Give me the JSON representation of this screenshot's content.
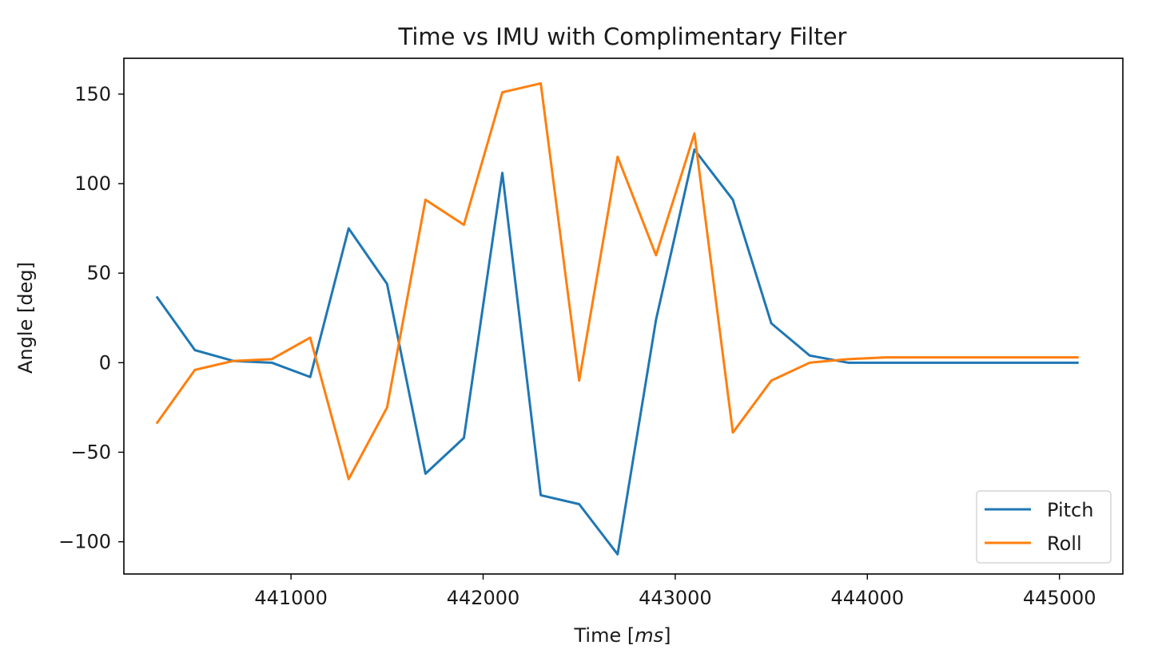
{
  "chart_data": {
    "type": "line",
    "title": "Time vs IMU with Complimentary Filter",
    "xlabel_prefix": "Time [",
    "xlabel_unit": "ms",
    "xlabel_suffix": "]",
    "ylabel": "Angle [deg]",
    "xlim": [
      440130,
      445330
    ],
    "ylim": [
      -118,
      170
    ],
    "xticks": [
      441000,
      442000,
      443000,
      444000,
      445000
    ],
    "yticks": [
      -100,
      -50,
      0,
      50,
      100,
      150
    ],
    "ytick_labels": [
      "−100",
      "−50",
      "0",
      "50",
      "100",
      "150"
    ],
    "grid": false,
    "legend_position": "lower-right",
    "x": [
      440300,
      440500,
      440700,
      440900,
      441100,
      441300,
      441500,
      441700,
      441900,
      442100,
      442300,
      442500,
      442700,
      442900,
      443100,
      443300,
      443500,
      443700,
      443900,
      444100,
      444300,
      444500,
      444700,
      444900,
      445100
    ],
    "series": [
      {
        "name": "Pitch",
        "color": "#1f77b4",
        "values": [
          37,
          7,
          1,
          0,
          -8,
          75,
          44,
          -62,
          -42,
          106,
          -74,
          -79,
          -107,
          24,
          119,
          91,
          22,
          4,
          0,
          0,
          0,
          0,
          0,
          0,
          0
        ]
      },
      {
        "name": "Roll",
        "color": "#ff7f0e",
        "values": [
          -34,
          -4,
          1,
          2,
          14,
          -65,
          -25,
          91,
          77,
          151,
          156,
          -10,
          115,
          60,
          128,
          -39,
          -10,
          0,
          2,
          3,
          3,
          3,
          3,
          3,
          3
        ]
      }
    ]
  }
}
